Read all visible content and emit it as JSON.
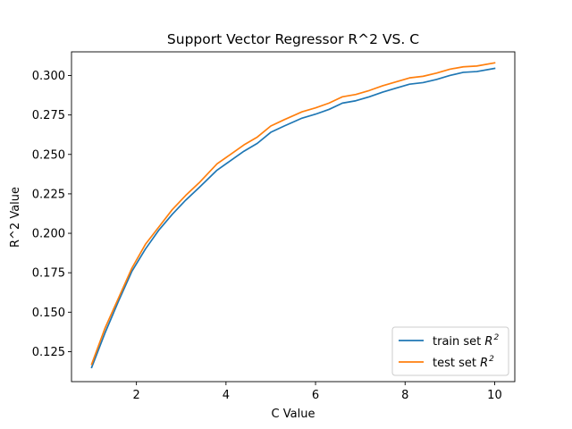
{
  "chart_data": {
    "type": "line",
    "title": "Support Vector Regressor R^2 VS. C",
    "xlabel": "C Value",
    "ylabel": "R^2 Value",
    "xlim": [
      0.55,
      10.45
    ],
    "ylim": [
      0.106,
      0.315
    ],
    "xticks": [
      2,
      4,
      6,
      8,
      10
    ],
    "xtick_labels": [
      "2",
      "4",
      "6",
      "8",
      "10"
    ],
    "yticks": [
      0.125,
      0.15,
      0.175,
      0.2,
      0.225,
      0.25,
      0.275,
      0.3
    ],
    "ytick_labels": [
      "0.125",
      "0.150",
      "0.175",
      "0.200",
      "0.225",
      "0.250",
      "0.275",
      "0.300"
    ],
    "grid": false,
    "legend_position": "bottom-right",
    "x": [
      1.0,
      1.3,
      1.6,
      1.9,
      2.2,
      2.5,
      2.8,
      3.1,
      3.4,
      3.8,
      4.1,
      4.4,
      4.7,
      5.0,
      5.3,
      5.7,
      6.0,
      6.3,
      6.6,
      6.9,
      7.2,
      7.5,
      7.8,
      8.1,
      8.4,
      8.7,
      9.0,
      9.3,
      9.6,
      10.0
    ],
    "series": [
      {
        "name": "train set R^2",
        "legend_base": "train set ",
        "legend_sym": "R",
        "legend_sup": "2",
        "color": "#1f77b4",
        "values": [
          0.115,
          0.137,
          0.157,
          0.176,
          0.19,
          0.202,
          0.212,
          0.221,
          0.229,
          0.24,
          0.246,
          0.252,
          0.257,
          0.264,
          0.268,
          0.273,
          0.2755,
          0.2785,
          0.2825,
          0.284,
          0.2865,
          0.2895,
          0.292,
          0.2945,
          0.2955,
          0.2975,
          0.3,
          0.302,
          0.3025,
          0.3045
        ]
      },
      {
        "name": "test set R^2",
        "legend_base": "test set ",
        "legend_sym": "R",
        "legend_sup": "2",
        "color": "#ff7f0e",
        "values": [
          0.117,
          0.14,
          0.159,
          0.178,
          0.193,
          0.204,
          0.215,
          0.224,
          0.232,
          0.244,
          0.25,
          0.256,
          0.261,
          0.268,
          0.272,
          0.277,
          0.2795,
          0.2825,
          0.2865,
          0.288,
          0.2905,
          0.2935,
          0.296,
          0.2985,
          0.2995,
          0.3015,
          0.304,
          0.3055,
          0.306,
          0.308
        ]
      }
    ]
  }
}
